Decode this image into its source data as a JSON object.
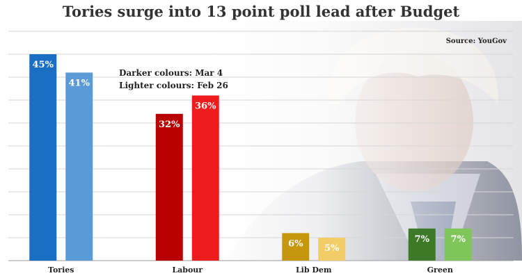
{
  "chart_data": {
    "type": "bar",
    "title": "Tories surge into 13 point poll lead after Budget",
    "source": "Source: YouGov",
    "legend": [
      "Darker colours: Mar 4",
      "Lighter colours: Feb 26"
    ],
    "categories": [
      "Tories",
      "Labour",
      "Lib Dem",
      "Green"
    ],
    "series": [
      {
        "values": [
          45,
          32,
          6,
          7
        ],
        "labels": [
          "45%",
          "32%",
          "6%",
          "7%"
        ],
        "colors": [
          "#1a6fc4",
          "#b80000",
          "#c7960f",
          "#3d7a28"
        ]
      },
      {
        "values": [
          41,
          36,
          5,
          7
        ],
        "labels": [
          "41%",
          "36%",
          "5%",
          "7%"
        ],
        "colors": [
          "#5a9ad6",
          "#ee1c1c",
          "#f2cc66",
          "#7fc65a"
        ]
      }
    ],
    "ylim": [
      0,
      50
    ],
    "grid": true
  }
}
